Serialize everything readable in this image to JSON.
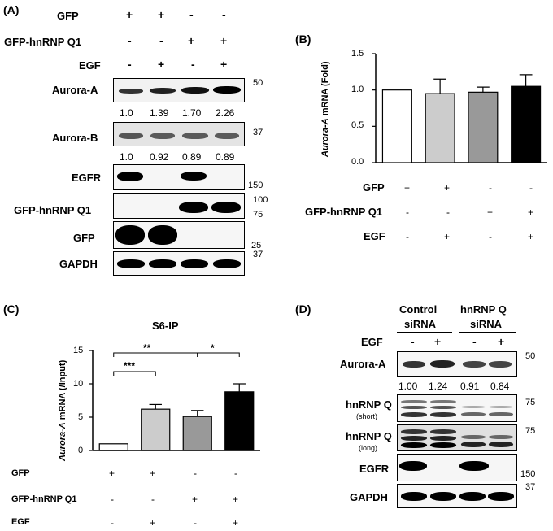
{
  "panelA": {
    "label": "(A)",
    "row_labels": {
      "gfp": "GFP",
      "hnrnp": "GFP-hnRNP Q1",
      "egf": "EGF"
    },
    "signs": {
      "gfp": [
        "+",
        "+",
        "-",
        "-"
      ],
      "hnrnp": [
        "-",
        "-",
        "+",
        "+"
      ],
      "egf": [
        "-",
        "+",
        "-",
        "+"
      ]
    },
    "blots": [
      {
        "label": "Aurora-A",
        "markers": [
          "50"
        ]
      },
      {
        "label": "Aurora-B",
        "markers": [
          "37"
        ]
      },
      {
        "label": "EGFR",
        "markers": [
          "150"
        ]
      },
      {
        "label": "GFP-hnRNP Q1",
        "markers": [
          "100",
          "75"
        ]
      },
      {
        "label": "GFP",
        "markers": [
          "25"
        ]
      },
      {
        "label": "GAPDH",
        "markers": [
          "37"
        ]
      }
    ],
    "quant_aurora_a": [
      "1.0",
      "1.39",
      "1.70",
      "2.26"
    ],
    "quant_aurora_b": [
      "1.0",
      "0.92",
      "0.89",
      "0.89"
    ]
  },
  "panelB": {
    "label": "(B)",
    "ylabel_italic": "Aurora-A",
    "ylabel_rest": " mRNA (Fold)",
    "row_labels": {
      "gfp": "GFP",
      "hnrnp": "GFP-hnRNP Q1",
      "egf": "EGF"
    },
    "signs": {
      "gfp": [
        "+",
        "+",
        "-",
        "-"
      ],
      "hnrnp": [
        "-",
        "-",
        "+",
        "+"
      ],
      "egf": [
        "-",
        "+",
        "-",
        "+"
      ]
    },
    "ytick_labels": [
      "0.0",
      "0.5",
      "1.0",
      "1.5"
    ]
  },
  "panelC": {
    "label": "(C)",
    "title": "S6-IP",
    "ylabel_italic": "Aurora-A",
    "ylabel_rest": " mRNA (/Input)",
    "row_labels": {
      "gfp": "GFP",
      "hnrnp": "GFP-hnRNP Q1",
      "egf": "EGF"
    },
    "signs": {
      "gfp": [
        "+",
        "+",
        "-",
        "-"
      ],
      "hnrnp": [
        "-",
        "-",
        "+",
        "+"
      ],
      "egf": [
        "-",
        "+",
        "-",
        "+"
      ]
    },
    "ytick_labels": [
      "0",
      "5",
      "10",
      "15"
    ],
    "sig": [
      "**",
      "*",
      "***"
    ]
  },
  "panelD": {
    "label": "(D)",
    "group1": [
      "Control",
      "siRNA"
    ],
    "group2": [
      "hnRNP Q",
      "siRNA"
    ],
    "egf_label": "EGF",
    "egf_signs": [
      "-",
      "+",
      "-",
      "+"
    ],
    "blots": [
      {
        "label": "Aurora-A",
        "sub": "",
        "markers": [
          "50"
        ]
      },
      {
        "label": "hnRNP Q",
        "sub": "(short)",
        "markers": [
          "75"
        ]
      },
      {
        "label": "hnRNP Q",
        "sub": "(long)",
        "markers": [
          "75"
        ]
      },
      {
        "label": "EGFR",
        "sub": "",
        "markers": [
          "150"
        ]
      },
      {
        "label": "GAPDH",
        "sub": "",
        "markers": [
          "37"
        ]
      }
    ],
    "quant": [
      "1.00",
      "1.24",
      "0.91",
      "0.84"
    ]
  },
  "chart_data": [
    {
      "type": "bar",
      "panel": "B",
      "categories": [
        "GFP",
        "GFP + EGF",
        "GFP-hnRNP Q1",
        "GFP-hnRNP Q1 + EGF"
      ],
      "values": [
        1.0,
        0.95,
        0.97,
        1.05
      ],
      "errors": [
        0.0,
        0.2,
        0.07,
        0.16
      ],
      "ylabel": "Aurora-A mRNA (Fold)",
      "ylim": [
        0,
        1.5
      ],
      "colors": [
        "#ffffff",
        "#cccccc",
        "#999999",
        "#000000"
      ]
    },
    {
      "type": "bar",
      "panel": "C",
      "title": "S6-IP",
      "categories": [
        "GFP",
        "GFP + EGF",
        "GFP-hnRNP Q1",
        "GFP-hnRNP Q1 + EGF"
      ],
      "values": [
        1.0,
        6.2,
        5.1,
        8.8
      ],
      "errors": [
        0.0,
        0.7,
        0.9,
        1.2
      ],
      "ylabel": "Aurora-A mRNA (/Input)",
      "ylim": [
        0,
        15
      ],
      "colors": [
        "#ffffff",
        "#cccccc",
        "#999999",
        "#000000"
      ],
      "significance": [
        "**",
        "*",
        "***"
      ]
    }
  ]
}
